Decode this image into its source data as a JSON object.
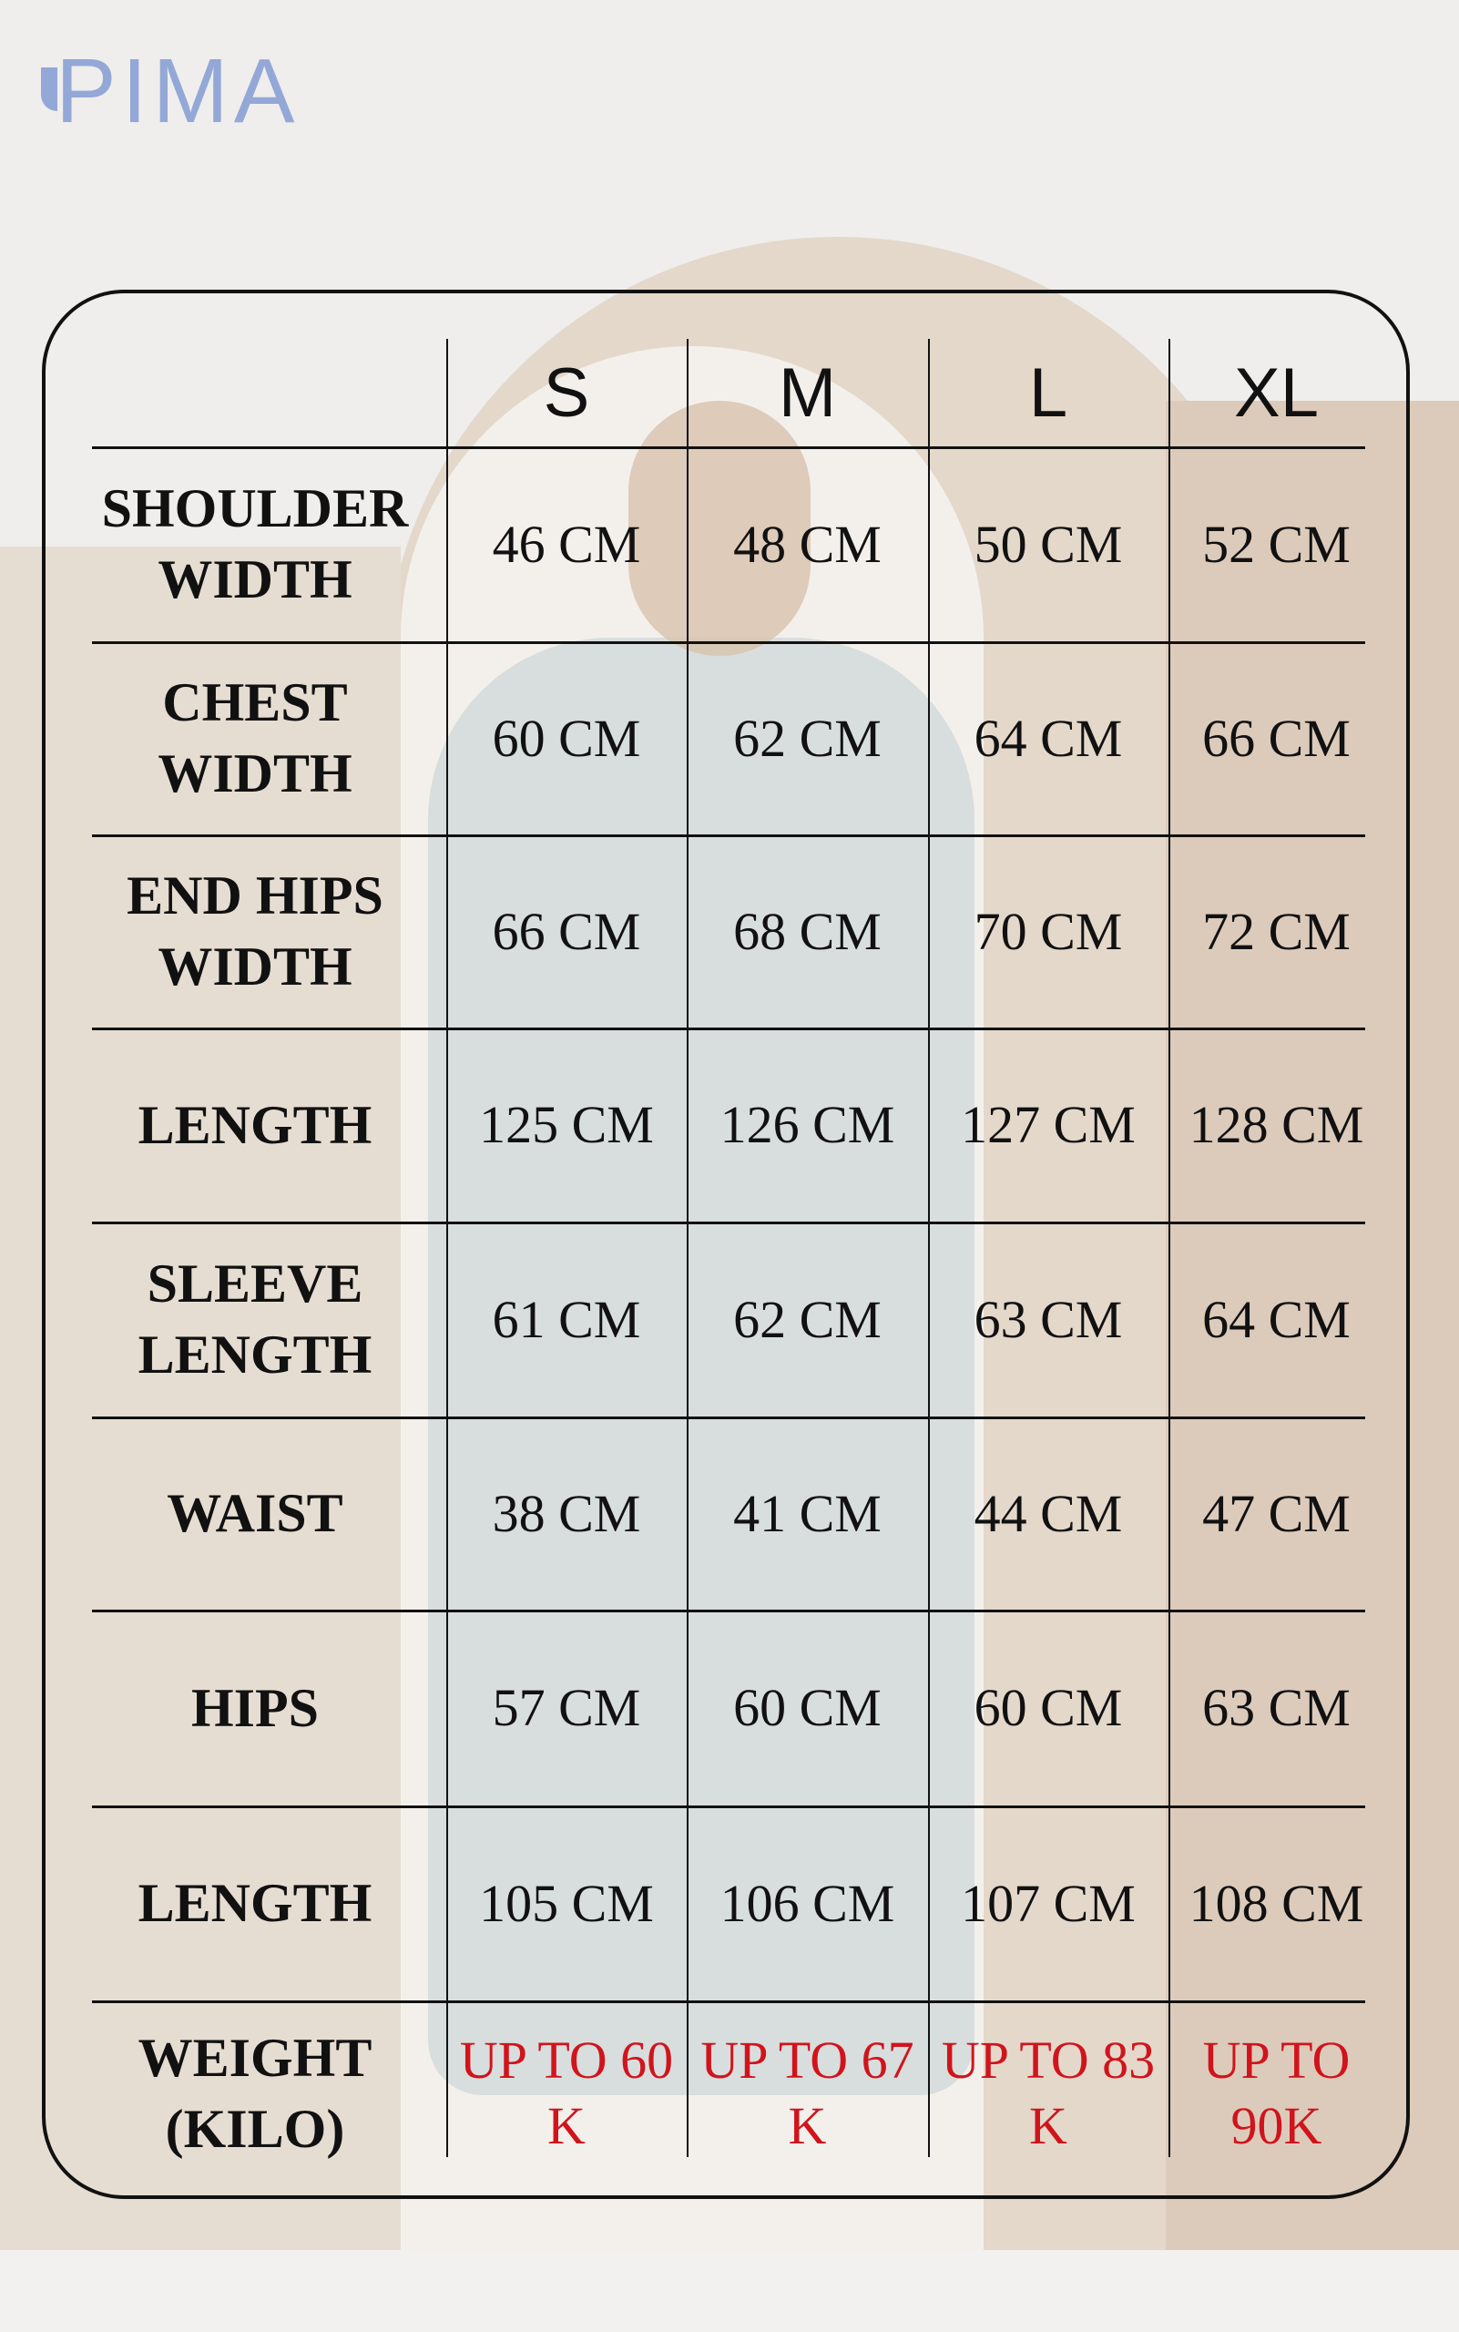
{
  "brand": {
    "logo": "PIMA",
    "color": "#93a8d6"
  },
  "colors": {
    "weight_values": "#d0141c",
    "lines": "#111111",
    "arch": "#d8c9b9"
  },
  "table": {
    "sizes": [
      "S",
      "M",
      "L",
      "XL"
    ],
    "rows": [
      {
        "label": "SHOULDER WIDTH",
        "values": [
          "46 CM",
          "48 CM",
          "50 CM",
          "52 CM"
        ]
      },
      {
        "label": "CHEST WIDTH",
        "values": [
          "60 CM",
          "62 CM",
          "64 CM",
          "66 CM"
        ]
      },
      {
        "label": "END HIPS WIDTH",
        "values": [
          "66 CM",
          "68 CM",
          "70 CM",
          "72 CM"
        ]
      },
      {
        "label": "LENGTH",
        "values": [
          "125 CM",
          "126 CM",
          "127 CM",
          "128 CM"
        ]
      },
      {
        "label": "SLEEVE LENGTH",
        "values": [
          "61 CM",
          "62 CM",
          "63 CM",
          "64 CM"
        ]
      },
      {
        "label": "WAIST",
        "values": [
          "38 CM",
          "41 CM",
          "44 CM",
          "47 CM"
        ]
      },
      {
        "label": "HIPS",
        "values": [
          "57 CM",
          "60 CM",
          "60 CM",
          "63 CM"
        ]
      },
      {
        "label": "LENGTH",
        "values": [
          "105 CM",
          "106 CM",
          "107 CM",
          "108 CM"
        ]
      },
      {
        "label": "WEIGHT (KILO)",
        "values": [
          "UP TO 60 K",
          "UP TO 67 K",
          "UP TO 83 K",
          "UP TO 90K"
        ]
      }
    ]
  }
}
